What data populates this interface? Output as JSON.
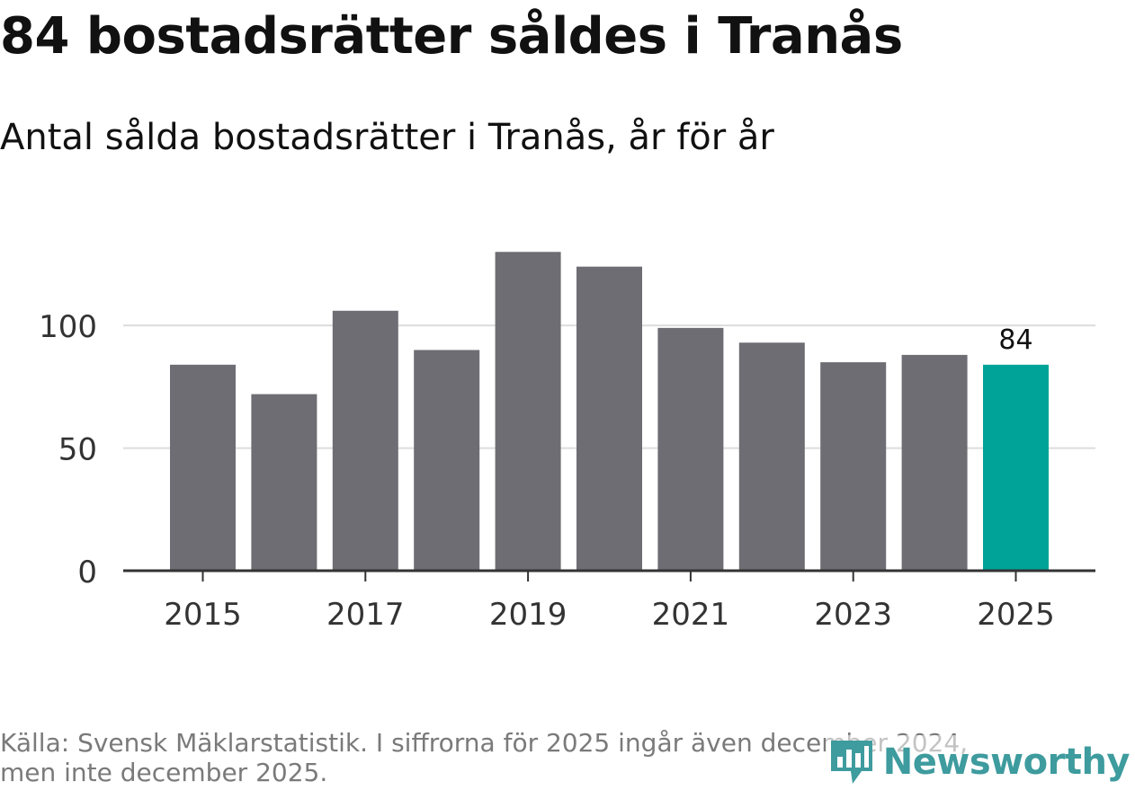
{
  "header": {
    "title": "84 bostadsrätter såldes i Tranås",
    "subtitle": "Antal sålda bostadsrätter i Tranås, år för år"
  },
  "footer": {
    "source_line1": "Källa: Svensk Mäklarstatistik. I siffrorna för 2025 ingår även december 2024,",
    "source_line2": "men inte december 2025."
  },
  "brand": {
    "name": "Newsworthy",
    "logo_icon": "bar-chart-pin-icon",
    "color": "#3e9b9e"
  },
  "colors": {
    "bar": "#6e6d73",
    "highlight": "#00a398",
    "grid": "#dddddd",
    "axis": "#333333",
    "text": "#333333"
  },
  "chart_data": {
    "type": "bar",
    "title": "84 bostadsrätter såldes i Tranås",
    "subtitle": "Antal sålda bostadsrätter i Tranås, år för år",
    "xlabel": "",
    "ylabel": "",
    "categories": [
      2015,
      2016,
      2017,
      2018,
      2019,
      2020,
      2021,
      2022,
      2023,
      2024,
      2025
    ],
    "values": [
      84,
      72,
      106,
      90,
      130,
      124,
      99,
      93,
      85,
      88,
      84
    ],
    "highlight_index": 10,
    "ylim": [
      0,
      140
    ],
    "y_ticks": [
      0,
      50,
      100
    ],
    "x_ticks": [
      2015,
      2017,
      2019,
      2021,
      2023,
      2025
    ],
    "data_labels": [
      {
        "index": 10,
        "text": "84"
      }
    ],
    "grid": true
  }
}
